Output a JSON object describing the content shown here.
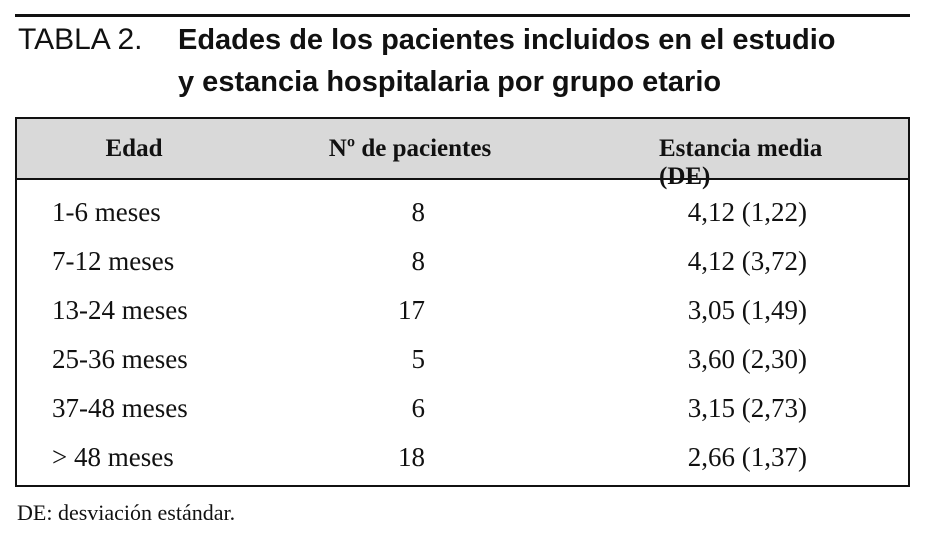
{
  "table_label": "TABLA 2.",
  "title_lines": [
    "Edades de los pacientes incluidos en el estudio",
    "y estancia hospitalaria por grupo etario"
  ],
  "table": {
    "header": [
      "Edad",
      "Nº de pacientes",
      "Estancia media (DE)"
    ],
    "rows": [
      [
        "1-6 meses",
        8,
        "4,12 (1,22)"
      ],
      [
        "7-12 meses",
        8,
        "4,12 (3,72)"
      ],
      [
        "13-24 meses",
        17,
        "3,05 (1,49)"
      ],
      [
        "25-36 meses",
        5,
        "3,60 (2,30)"
      ],
      [
        "37-48 meses",
        6,
        "3,15 (2,73)"
      ],
      [
        "> 48 meses",
        18,
        "2,66 (1,37)"
      ]
    ]
  },
  "footnote": "DE: desviación estándar."
}
